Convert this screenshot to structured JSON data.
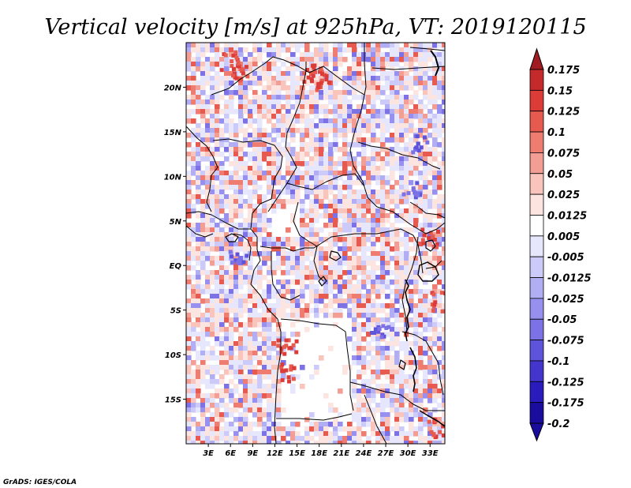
{
  "title": "Vertical velocity [m/s] at 925hPa, VT: 2019120115",
  "credit": "GrADS: IGES/COLA",
  "map": {
    "lon_range": [
      0,
      35
    ],
    "lat_range": [
      -20,
      25
    ],
    "lat_ticks": [
      {
        "value": 20,
        "label": "20N"
      },
      {
        "value": 15,
        "label": "15N"
      },
      {
        "value": 10,
        "label": "10N"
      },
      {
        "value": 5,
        "label": "5N"
      },
      {
        "value": 0,
        "label": "EQ"
      },
      {
        "value": -5,
        "label": "5S"
      },
      {
        "value": -10,
        "label": "10S"
      },
      {
        "value": -15,
        "label": "15S"
      }
    ],
    "lon_ticks": [
      {
        "value": 3,
        "label": "3E"
      },
      {
        "value": 6,
        "label": "6E"
      },
      {
        "value": 9,
        "label": "9E"
      },
      {
        "value": 12,
        "label": "12E"
      },
      {
        "value": 15,
        "label": "15E"
      },
      {
        "value": 18,
        "label": "18E"
      },
      {
        "value": 21,
        "label": "21E"
      },
      {
        "value": 24,
        "label": "24E"
      },
      {
        "value": 27,
        "label": "27E"
      },
      {
        "value": 30,
        "label": "30E"
      },
      {
        "value": 33,
        "label": "33E"
      }
    ]
  },
  "colorbar": {
    "labels": [
      "0.175",
      "0.15",
      "0.125",
      "0.1",
      "0.075",
      "0.05",
      "0.025",
      "0.0125",
      "0.005",
      "-0.005",
      "-0.0125",
      "-0.025",
      "-0.05",
      "-0.075",
      "-0.1",
      "-0.125",
      "-0.175",
      "-0.2"
    ],
    "colors": [
      "#a01c22",
      "#c42a2c",
      "#dc3c38",
      "#e65a50",
      "#ee7c70",
      "#f29e94",
      "#f8c4bc",
      "#fce4e0",
      "#ffffff",
      "#e6e6fc",
      "#cccaf8",
      "#b2aef4",
      "#9890ee",
      "#7c72e6",
      "#5e54dc",
      "#4436cc",
      "#2a1cbc",
      "#1a0c9c"
    ]
  }
}
